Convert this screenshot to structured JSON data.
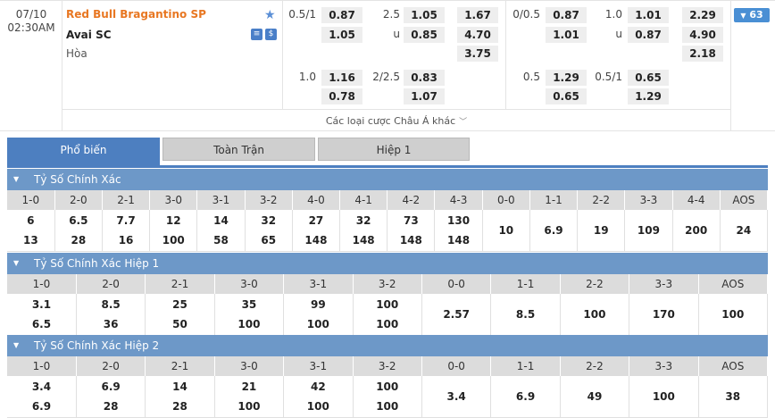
{
  "match": {
    "date": "07/10",
    "time": "02:30AM",
    "home": "Red Bull Bragantino SP",
    "away": "Avai SC",
    "draw": "Hòa",
    "money_icon_label": "$",
    "more_bets_label": "Các loại cược Châu Á khác",
    "more_count": "63"
  },
  "full_time": {
    "handicap_main": {
      "line": "0.5/1",
      "home": "0.87",
      "away": "1.05"
    },
    "ou_main": {
      "line": "2.5",
      "over": "1.05",
      "u_label": "u",
      "under": "0.85"
    },
    "x12": {
      "home": "1.67",
      "away": "4.70",
      "draw": "3.75"
    },
    "handicap_alt": {
      "line": "1.0",
      "home": "1.16",
      "away": "0.78"
    },
    "ou_alt": {
      "line": "2/2.5",
      "over": "0.83",
      "under": "1.07"
    }
  },
  "first_half": {
    "handicap_main": {
      "line": "0/0.5",
      "home": "0.87",
      "away": "1.01"
    },
    "ou_main": {
      "line": "1.0",
      "over": "1.01",
      "u_label": "u",
      "under": "0.87"
    },
    "x12": {
      "home": "2.29",
      "away": "4.90",
      "draw": "2.18"
    },
    "handicap_alt": {
      "line": "0.5",
      "home": "1.29",
      "away": "0.65"
    },
    "ou_alt": {
      "line": "0.5/1",
      "over": "0.65",
      "under": "1.29"
    }
  },
  "tabs": [
    {
      "label": "Phổ biến",
      "active": true
    },
    {
      "label": "Toàn Trận",
      "active": false
    },
    {
      "label": "Hiệp 1",
      "active": false
    }
  ],
  "sections": [
    {
      "title": "Tỷ Số Chính Xác",
      "headers": [
        "1-0",
        "2-0",
        "2-1",
        "3-0",
        "3-1",
        "3-2",
        "4-0",
        "4-1",
        "4-2",
        "4-3",
        "0-0",
        "1-1",
        "2-2",
        "3-3",
        "4-4",
        "AOS"
      ],
      "top": [
        "6",
        "6.5",
        "7.7",
        "12",
        "14",
        "32",
        "27",
        "32",
        "73",
        "130"
      ],
      "bottom": [
        "13",
        "28",
        "16",
        "100",
        "58",
        "65",
        "148",
        "148",
        "148",
        "148"
      ],
      "single": [
        "10",
        "6.9",
        "19",
        "109",
        "200",
        "24"
      ]
    },
    {
      "title": "Tỷ Số Chính Xác Hiệp 1",
      "headers": [
        "1-0",
        "2-0",
        "2-1",
        "3-0",
        "3-1",
        "3-2",
        "0-0",
        "1-1",
        "2-2",
        "3-3",
        "AOS"
      ],
      "top": [
        "3.1",
        "8.5",
        "25",
        "35",
        "99",
        "100"
      ],
      "bottom": [
        "6.5",
        "36",
        "50",
        "100",
        "100",
        "100"
      ],
      "single": [
        "2.57",
        "8.5",
        "100",
        "170",
        "100"
      ]
    },
    {
      "title": "Tỷ Số Chính Xác Hiệp 2",
      "headers": [
        "1-0",
        "2-0",
        "2-1",
        "3-0",
        "3-1",
        "3-2",
        "0-0",
        "1-1",
        "2-2",
        "3-3",
        "AOS"
      ],
      "top": [
        "3.4",
        "6.9",
        "14",
        "21",
        "42",
        "100"
      ],
      "bottom": [
        "6.9",
        "28",
        "28",
        "100",
        "100",
        "100"
      ],
      "single": [
        "3.4",
        "6.9",
        "49",
        "100",
        "38"
      ]
    }
  ]
}
